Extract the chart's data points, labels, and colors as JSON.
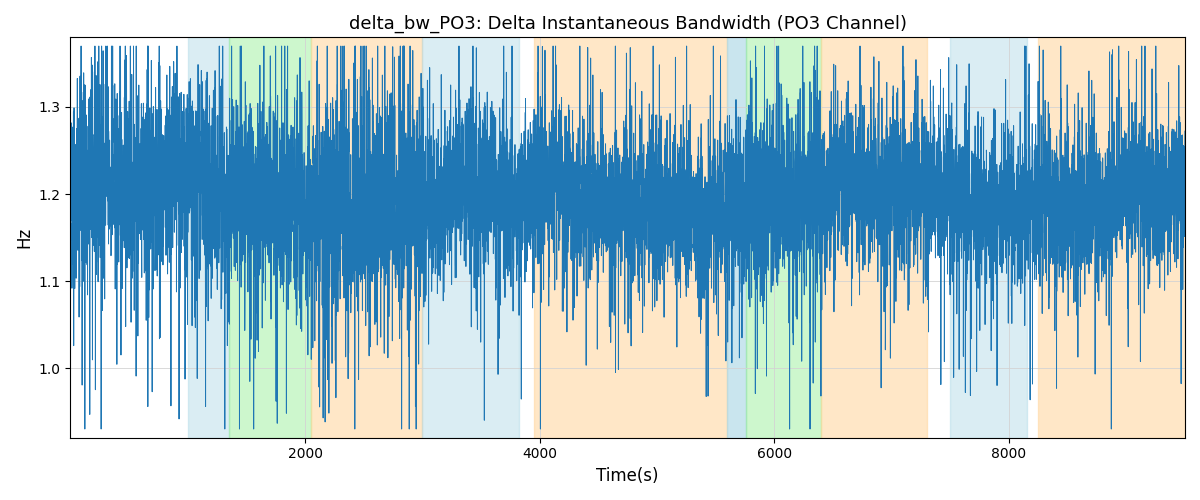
{
  "title": "delta_bw_PO3: Delta Instantaneous Bandwidth (PO3 Channel)",
  "xlabel": "Time(s)",
  "ylabel": "Hz",
  "xlim": [
    0,
    9500
  ],
  "ylim": [
    0.92,
    1.38
  ],
  "yticks": [
    1.0,
    1.1,
    1.2,
    1.3
  ],
  "xticks": [
    2000,
    4000,
    6000,
    8000
  ],
  "grid": true,
  "line_color": "#1f77b4",
  "line_width": 0.7,
  "background_color": "#ffffff",
  "colored_bands": [
    {
      "xmin": 1000,
      "xmax": 1350,
      "color": "#add8e6",
      "alpha": 0.45
    },
    {
      "xmin": 1350,
      "xmax": 2050,
      "color": "#90ee90",
      "alpha": 0.45
    },
    {
      "xmin": 2050,
      "xmax": 3000,
      "color": "#ffd59a",
      "alpha": 0.55
    },
    {
      "xmin": 3000,
      "xmax": 3820,
      "color": "#add8e6",
      "alpha": 0.45
    },
    {
      "xmin": 3950,
      "xmax": 5600,
      "color": "#ffd59a",
      "alpha": 0.55
    },
    {
      "xmin": 5600,
      "xmax": 5760,
      "color": "#add8e6",
      "alpha": 0.65
    },
    {
      "xmin": 5760,
      "xmax": 6400,
      "color": "#90ee90",
      "alpha": 0.45
    },
    {
      "xmin": 6400,
      "xmax": 7300,
      "color": "#ffd59a",
      "alpha": 0.55
    },
    {
      "xmin": 7500,
      "xmax": 8150,
      "color": "#add8e6",
      "alpha": 0.45
    },
    {
      "xmin": 8250,
      "xmax": 9500,
      "color": "#ffd59a",
      "alpha": 0.55
    }
  ],
  "signal_seed": 42,
  "signal_n": 9500,
  "signal_mean": 1.195,
  "signal_std": 0.042,
  "spike_std": 0.085,
  "signal_min_clip": 0.93,
  "signal_max_clip": 1.37
}
